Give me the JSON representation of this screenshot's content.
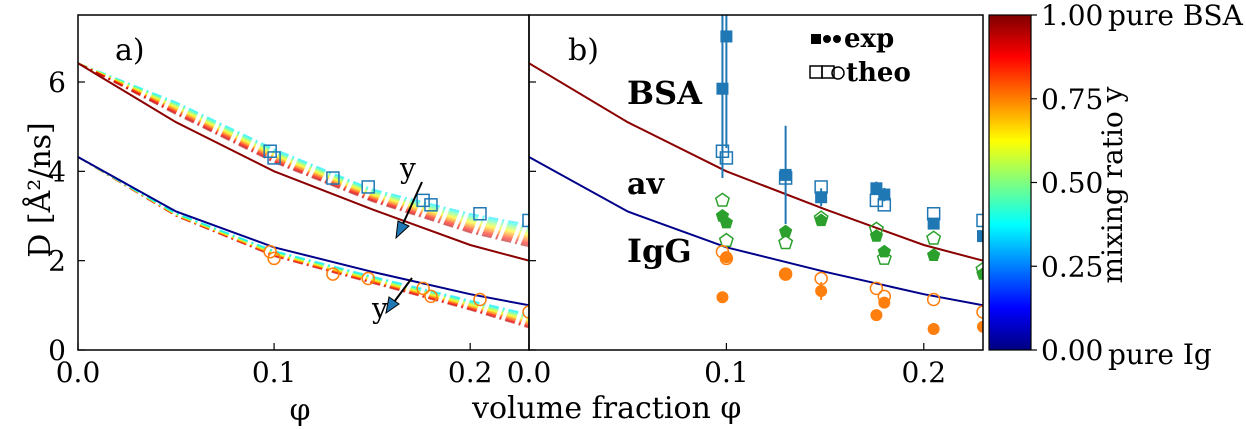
{
  "chart_data": [
    {
      "type": "line",
      "panel_label": "a)",
      "xlabel": "φ",
      "ylabel": "D [Å²/ns]",
      "xlim": [
        0.0,
        0.23
      ],
      "ylim": [
        0,
        7.5
      ],
      "xticks": [
        "0.0",
        "0.1",
        "0.2"
      ],
      "yticks": [
        "0",
        "2",
        "4",
        "6"
      ],
      "annotations": [
        "y",
        "y"
      ],
      "series": [
        {
          "color": "#8b0000",
          "style": "solid",
          "x": [
            0.0,
            0.05,
            0.1,
            0.15,
            0.2,
            0.23
          ],
          "y": [
            6.42,
            5.1,
            4.0,
            3.15,
            2.35,
            2.0
          ]
        },
        {
          "color": "#00008b",
          "style": "solid",
          "x": [
            0.0,
            0.05,
            0.1,
            0.15,
            0.2,
            0.23
          ],
          "y": [
            4.32,
            3.1,
            2.3,
            1.75,
            1.25,
            1.0
          ]
        },
        {
          "style": "dashdot",
          "x": [
            0.0,
            0.05,
            0.1,
            0.15,
            0.2,
            0.23
          ],
          "y": [
            6.42,
            5.55,
            4.5,
            3.6,
            3.05,
            2.8
          ]
        },
        {
          "style": "dashdot",
          "x": [
            0.0,
            0.05,
            0.1,
            0.15,
            0.2,
            0.23
          ],
          "y": [
            4.32,
            3.0,
            2.1,
            1.5,
            0.9,
            0.5
          ]
        },
        {
          "marker": "open-square",
          "color": "#1f77b4",
          "x": [
            0.098,
            0.1,
            0.13,
            0.148,
            0.176,
            0.18,
            0.205,
            0.23
          ],
          "y": [
            4.45,
            4.3,
            3.85,
            3.65,
            3.35,
            3.25,
            3.05,
            2.9
          ]
        },
        {
          "marker": "open-circle",
          "color": "#ff7f0e",
          "x": [
            0.098,
            0.1,
            0.13,
            0.148,
            0.176,
            0.18,
            0.205,
            0.23
          ],
          "y": [
            2.2,
            2.05,
            1.7,
            1.6,
            1.38,
            1.2,
            1.13,
            0.85
          ]
        }
      ]
    },
    {
      "type": "scatter",
      "panel_label": "b)",
      "xlabel": "volume fraction φ",
      "xlim": [
        0.0,
        0.23
      ],
      "ylim": [
        0,
        7.5
      ],
      "xticks": [
        "0.0",
        "0.1",
        "0.2"
      ],
      "legend": {
        "position": "top-right",
        "entries": [
          "exp",
          "theo"
        ]
      },
      "group_labels": [
        {
          "text": "BSA",
          "color": "#1f77b4"
        },
        {
          "text": "av",
          "color": "#2ca02c"
        },
        {
          "text": "IgG",
          "color": "#ff7f0e"
        }
      ],
      "series": [
        {
          "color": "#8b0000",
          "style": "solid",
          "x": [
            0.0,
            0.05,
            0.1,
            0.15,
            0.2,
            0.23
          ],
          "y": [
            6.42,
            5.1,
            4.0,
            3.15,
            2.35,
            2.0
          ]
        },
        {
          "color": "#00008b",
          "style": "solid",
          "x": [
            0.0,
            0.05,
            0.1,
            0.15,
            0.2,
            0.23
          ],
          "y": [
            4.32,
            3.1,
            2.3,
            1.75,
            1.25,
            1.0
          ]
        },
        {
          "kind": "exp",
          "marker": "filled-square",
          "color": "#1f77b4",
          "x": [
            0.098,
            0.1,
            0.13,
            0.148,
            0.176,
            0.18,
            0.205,
            0.23
          ],
          "y": [
            5.85,
            7.02,
            3.92,
            3.42,
            3.62,
            3.48,
            2.83,
            2.55
          ],
          "yerr": [
            2.0,
            2.5,
            1.1,
            0.2,
            0.15,
            0.15,
            0.1,
            0.1
          ]
        },
        {
          "kind": "theo",
          "marker": "open-square",
          "color": "#1f77b4",
          "x": [
            0.098,
            0.1,
            0.13,
            0.148,
            0.176,
            0.18,
            0.205,
            0.23
          ],
          "y": [
            4.45,
            4.3,
            3.85,
            3.65,
            3.35,
            3.25,
            3.05,
            2.9
          ]
        },
        {
          "kind": "exp",
          "marker": "filled-pentagon",
          "color": "#2ca02c",
          "x": [
            0.098,
            0.1,
            0.13,
            0.148,
            0.176,
            0.18,
            0.205,
            0.23
          ],
          "y": [
            3.0,
            2.85,
            2.65,
            2.9,
            2.55,
            2.2,
            2.12,
            1.7
          ]
        },
        {
          "kind": "theo",
          "marker": "open-pentagon",
          "color": "#2ca02c",
          "x": [
            0.098,
            0.1,
            0.13,
            0.148,
            0.176,
            0.18,
            0.205,
            0.23
          ],
          "y": [
            3.35,
            2.45,
            2.4,
            2.95,
            2.7,
            2.05,
            2.5,
            1.8
          ]
        },
        {
          "kind": "exp",
          "marker": "filled-circle",
          "color": "#ff7f0e",
          "x": [
            0.098,
            0.1,
            0.13,
            0.148,
            0.176,
            0.18,
            0.205,
            0.23
          ],
          "y": [
            1.18,
            2.08,
            1.7,
            1.32,
            0.78,
            1.06,
            0.47,
            0.52
          ],
          "yerr": [
            0,
            0,
            0,
            0.2,
            0,
            0,
            0,
            0
          ]
        },
        {
          "kind": "theo",
          "marker": "open-circle",
          "color": "#ff7f0e",
          "x": [
            0.098,
            0.1,
            0.13,
            0.148,
            0.176,
            0.18,
            0.205,
            0.23
          ],
          "y": [
            2.2,
            2.05,
            1.7,
            1.6,
            1.38,
            1.2,
            1.13,
            0.85
          ]
        }
      ]
    }
  ],
  "colorbar": {
    "label": "mixing ratio y",
    "ticks": [
      "0.00",
      "0.25",
      "0.50",
      "0.75",
      "1.00"
    ],
    "end_labels": {
      "top": "pure BSA",
      "bottom": "pure Ig"
    },
    "colormap": [
      "#00007f",
      "#0000ff",
      "#007fff",
      "#00ffff",
      "#7fff7f",
      "#ffff00",
      "#ff7f00",
      "#ff0000",
      "#7f0000"
    ]
  }
}
